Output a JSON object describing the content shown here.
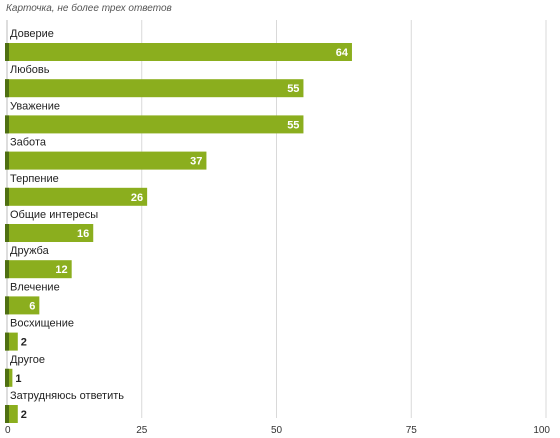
{
  "header": {
    "note": "Карточка, не более трех ответов"
  },
  "colors": {
    "bar": "#8bae1e",
    "bar_edge": "#4f7012",
    "grid": "#d9d9d9",
    "label_in": "#ffffff",
    "label_out": "#222222"
  },
  "chart_data": {
    "type": "bar",
    "orientation": "horizontal",
    "title": "",
    "xlabel": "",
    "ylabel": "",
    "xlim": [
      0,
      100
    ],
    "ticks": [
      0,
      25,
      50,
      75,
      100
    ],
    "grid": true,
    "categories": [
      "Доверие",
      "Любовь",
      "Уважение",
      "Забота",
      "Терпение",
      "Общие интересы",
      "Дружба",
      "Влечение",
      "Восхищение",
      "Другое",
      "Затрудняюсь ответить"
    ],
    "values": [
      64,
      55,
      55,
      37,
      26,
      16,
      12,
      6,
      2,
      1,
      2
    ]
  }
}
